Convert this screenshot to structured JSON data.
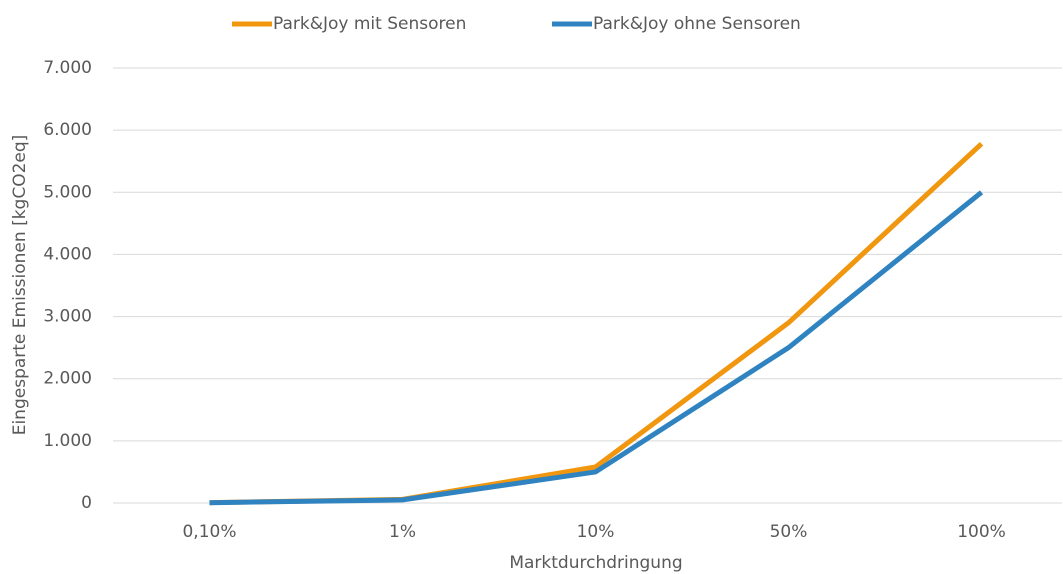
{
  "chart_data": {
    "type": "line",
    "x_label": "Marktdurchdringung",
    "y_label": "Eingesparte Emissionen [kgCO2eq]",
    "categories": [
      "0,10%",
      "1%",
      "10%",
      "50%",
      "100%"
    ],
    "series": [
      {
        "name": "Park&Joy mit Sensoren",
        "color": "#f0960f",
        "values": [
          6,
          58,
          580,
          2900,
          5780
        ]
      },
      {
        "name": "Park&Joy ohne Sensoren",
        "color": "#2f83c0",
        "values": [
          5,
          50,
          500,
          2500,
          5000
        ]
      }
    ],
    "ylim": [
      0,
      7000
    ],
    "yticks": [
      0,
      {
        "value": 1000,
        "label": "1.000"
      },
      {
        "value": 2000,
        "label": "2.000"
      },
      {
        "value": 3000,
        "label": "3.000"
      },
      {
        "value": 4000,
        "label": "4.000"
      },
      {
        "value": 5000,
        "label": "5.000"
      },
      {
        "value": 6000,
        "label": "6.000"
      },
      {
        "value": 7000,
        "label": "7.000"
      }
    ],
    "grid": true,
    "legend": "top"
  }
}
